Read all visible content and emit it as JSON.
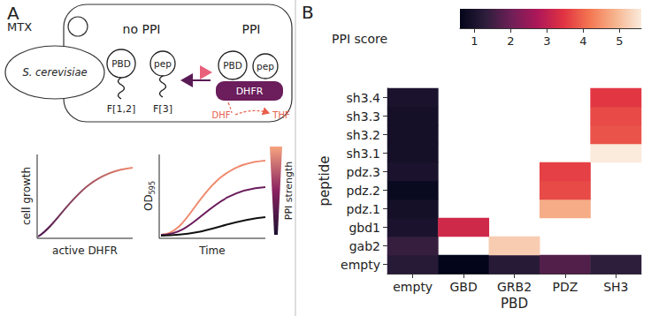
{
  "diagram": {
    "panel_label": "A",
    "drug": "MTX",
    "organism": "S. cerevisiae",
    "states": {
      "left": "no PPI",
      "right": "PPI"
    },
    "domain": "PBD",
    "peptide": "pep",
    "fragments": [
      "F[1,2]",
      "F[3]"
    ],
    "enzyme": "DHFR",
    "substrate": "DHF",
    "product": "THF",
    "plot1": {
      "ylabel": "cell growth",
      "xlabel": "active DHFR"
    },
    "plot2": {
      "ylabel": {
        "text": "OD",
        "subscript": "595"
      },
      "xlabel": "Time",
      "gradient_label": "PPI strength"
    }
  },
  "chart_data": {
    "type": "heatmap",
    "panel_label": "B",
    "xlabel": "PBD",
    "ylabel": "peptide",
    "x": [
      "empty",
      "GBD",
      "GRB2",
      "PDZ",
      "SH3"
    ],
    "y": [
      "empty",
      "gab2",
      "gbd1",
      "pdz.1",
      "pdz.2",
      "pdz.3",
      "sh3.1",
      "sh3.2",
      "sh3.3",
      "sh3.4"
    ],
    "values": [
      [
        1.2,
        0.6,
        1.2,
        1.7,
        1.3
      ],
      [
        1.4,
        null,
        5.2,
        null,
        null
      ],
      [
        1.0,
        3.2,
        null,
        null,
        null
      ],
      [
        0.9,
        null,
        null,
        4.8,
        null
      ],
      [
        0.7,
        null,
        null,
        3.7,
        null
      ],
      [
        1.0,
        null,
        null,
        3.6,
        null
      ],
      [
        0.9,
        null,
        null,
        null,
        5.6
      ],
      [
        0.9,
        null,
        null,
        null,
        3.8
      ],
      [
        0.9,
        null,
        null,
        null,
        3.7
      ],
      [
        1.0,
        null,
        null,
        null,
        3.5
      ]
    ],
    "colorbar": {
      "label": "PPI score",
      "range": [
        0.6,
        5.6
      ],
      "ticks": [
        1,
        2,
        3,
        4,
        5
      ]
    }
  }
}
